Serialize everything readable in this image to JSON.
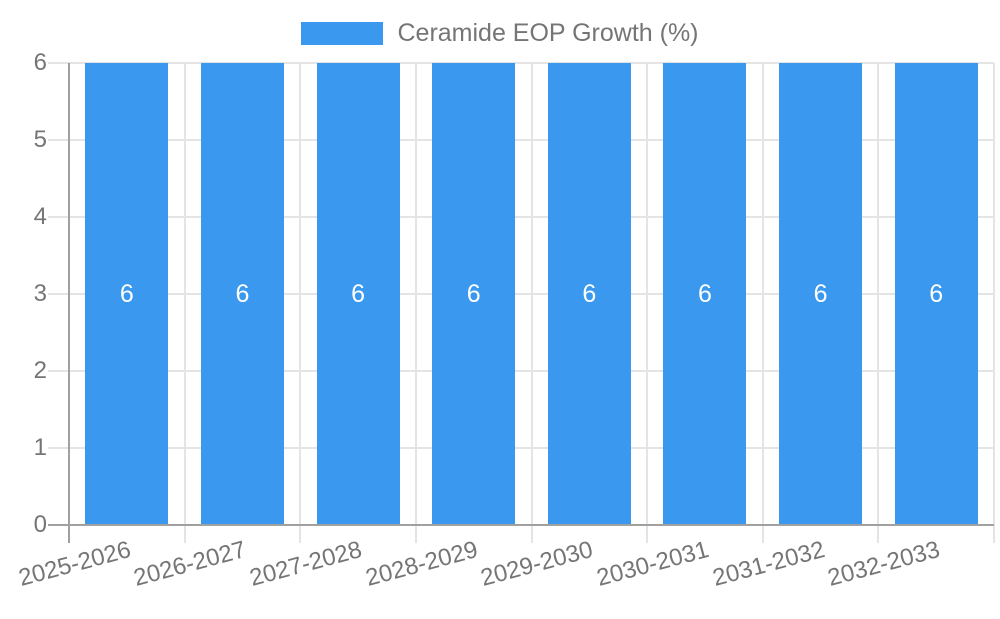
{
  "chart_data": {
    "type": "bar",
    "title": "",
    "legend": {
      "label": "Ceramide EOP Growth (%)",
      "position": "top"
    },
    "categories": [
      "2025-2026",
      "2026-2027",
      "2027-2028",
      "2028-2029",
      "2029-2030",
      "2030-2031",
      "2031-2032",
      "2032-2033"
    ],
    "series": [
      {
        "name": "Ceramide EOP Growth (%)",
        "values": [
          6,
          6,
          6,
          6,
          6,
          6,
          6,
          6
        ]
      }
    ],
    "value_labels": [
      "6",
      "6",
      "6",
      "6",
      "6",
      "6",
      "6",
      "6"
    ],
    "xlabel": "",
    "ylabel": "",
    "ylim": [
      0,
      6
    ],
    "yticks": [
      0,
      1,
      2,
      3,
      4,
      5,
      6
    ],
    "grid": true,
    "x_label_rotation_deg": -15,
    "colors": {
      "bar": "#3A99EE",
      "grid": "#E4E4E4",
      "axis": "#A0A0A0",
      "tick_label": "#757575",
      "legend_text": "#757575",
      "value_label": "#FFFFFF",
      "background": "#FFFFFF"
    }
  }
}
